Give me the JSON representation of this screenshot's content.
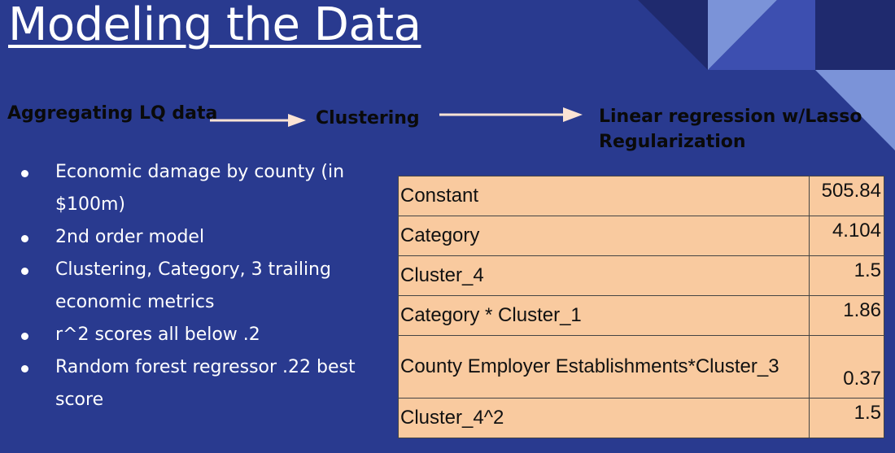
{
  "title": "Modeling the Data",
  "pipeline": {
    "step1": "Aggregating LQ data",
    "step2": "Clustering",
    "step3": "Linear regression w/Lasso Regularization"
  },
  "bullets": [
    "Economic damage by county (in $100m)",
    "2nd order model",
    "Clustering, Category, 3 trailing economic metrics",
    "r^2 scores all below .2",
    "Random forest regressor .22 best score"
  ],
  "coefficients": [
    {
      "name": "Constant",
      "value": "505.84"
    },
    {
      "name": "Category",
      "value": "4.104"
    },
    {
      "name": "Cluster_4",
      "value": "1.5"
    },
    {
      "name": "Category * Cluster_1",
      "value": "1.86"
    },
    {
      "name": "County Employer Establishments*Cluster_3",
      "value": "0.37"
    },
    {
      "name": "Cluster_4^2",
      "value": "1.5"
    }
  ],
  "colors": {
    "background": "#293a8f",
    "table_fill": "#f9ca9f",
    "arrow": "#fbe3d4"
  }
}
